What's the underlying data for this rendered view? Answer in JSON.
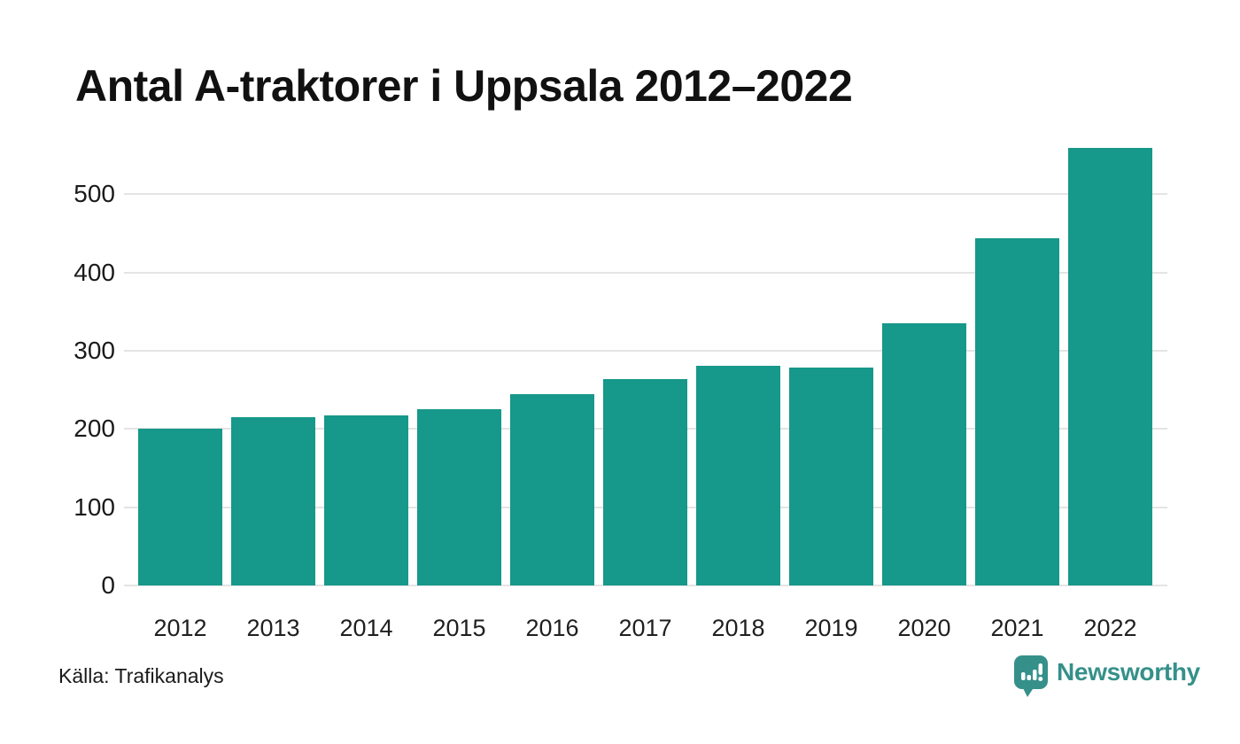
{
  "page": {
    "title": "Antal A-traktorer i Uppsala 2012–2022",
    "source": "Källa: Trafikanalys"
  },
  "logo": {
    "text": "Newsworthy",
    "icon": "newsworthy-speech-bubble-bar-chart-icon"
  },
  "colors": {
    "bar": "#16988A",
    "logo_teal": "#35908A",
    "gridline": "#E4E4E4",
    "title_text": "#111111",
    "axis_text": "#1F1F1F"
  },
  "chart_data": {
    "type": "bar",
    "title": "Antal A-traktorer i Uppsala 2012–2022",
    "categories": [
      "2012",
      "2013",
      "2014",
      "2015",
      "2016",
      "2017",
      "2018",
      "2019",
      "2020",
      "2021",
      "2022"
    ],
    "values": [
      200,
      215,
      217,
      225,
      245,
      264,
      281,
      279,
      335,
      444,
      559
    ],
    "xlabel": "",
    "ylabel": "",
    "y_ticks": [
      0,
      100,
      200,
      300,
      400,
      500
    ],
    "ylim": [
      0,
      565
    ],
    "grid": "horizontal-gridlines-only",
    "legend": "none",
    "bar_color": "#16988A",
    "source": "Källa: Trafikanalys"
  }
}
